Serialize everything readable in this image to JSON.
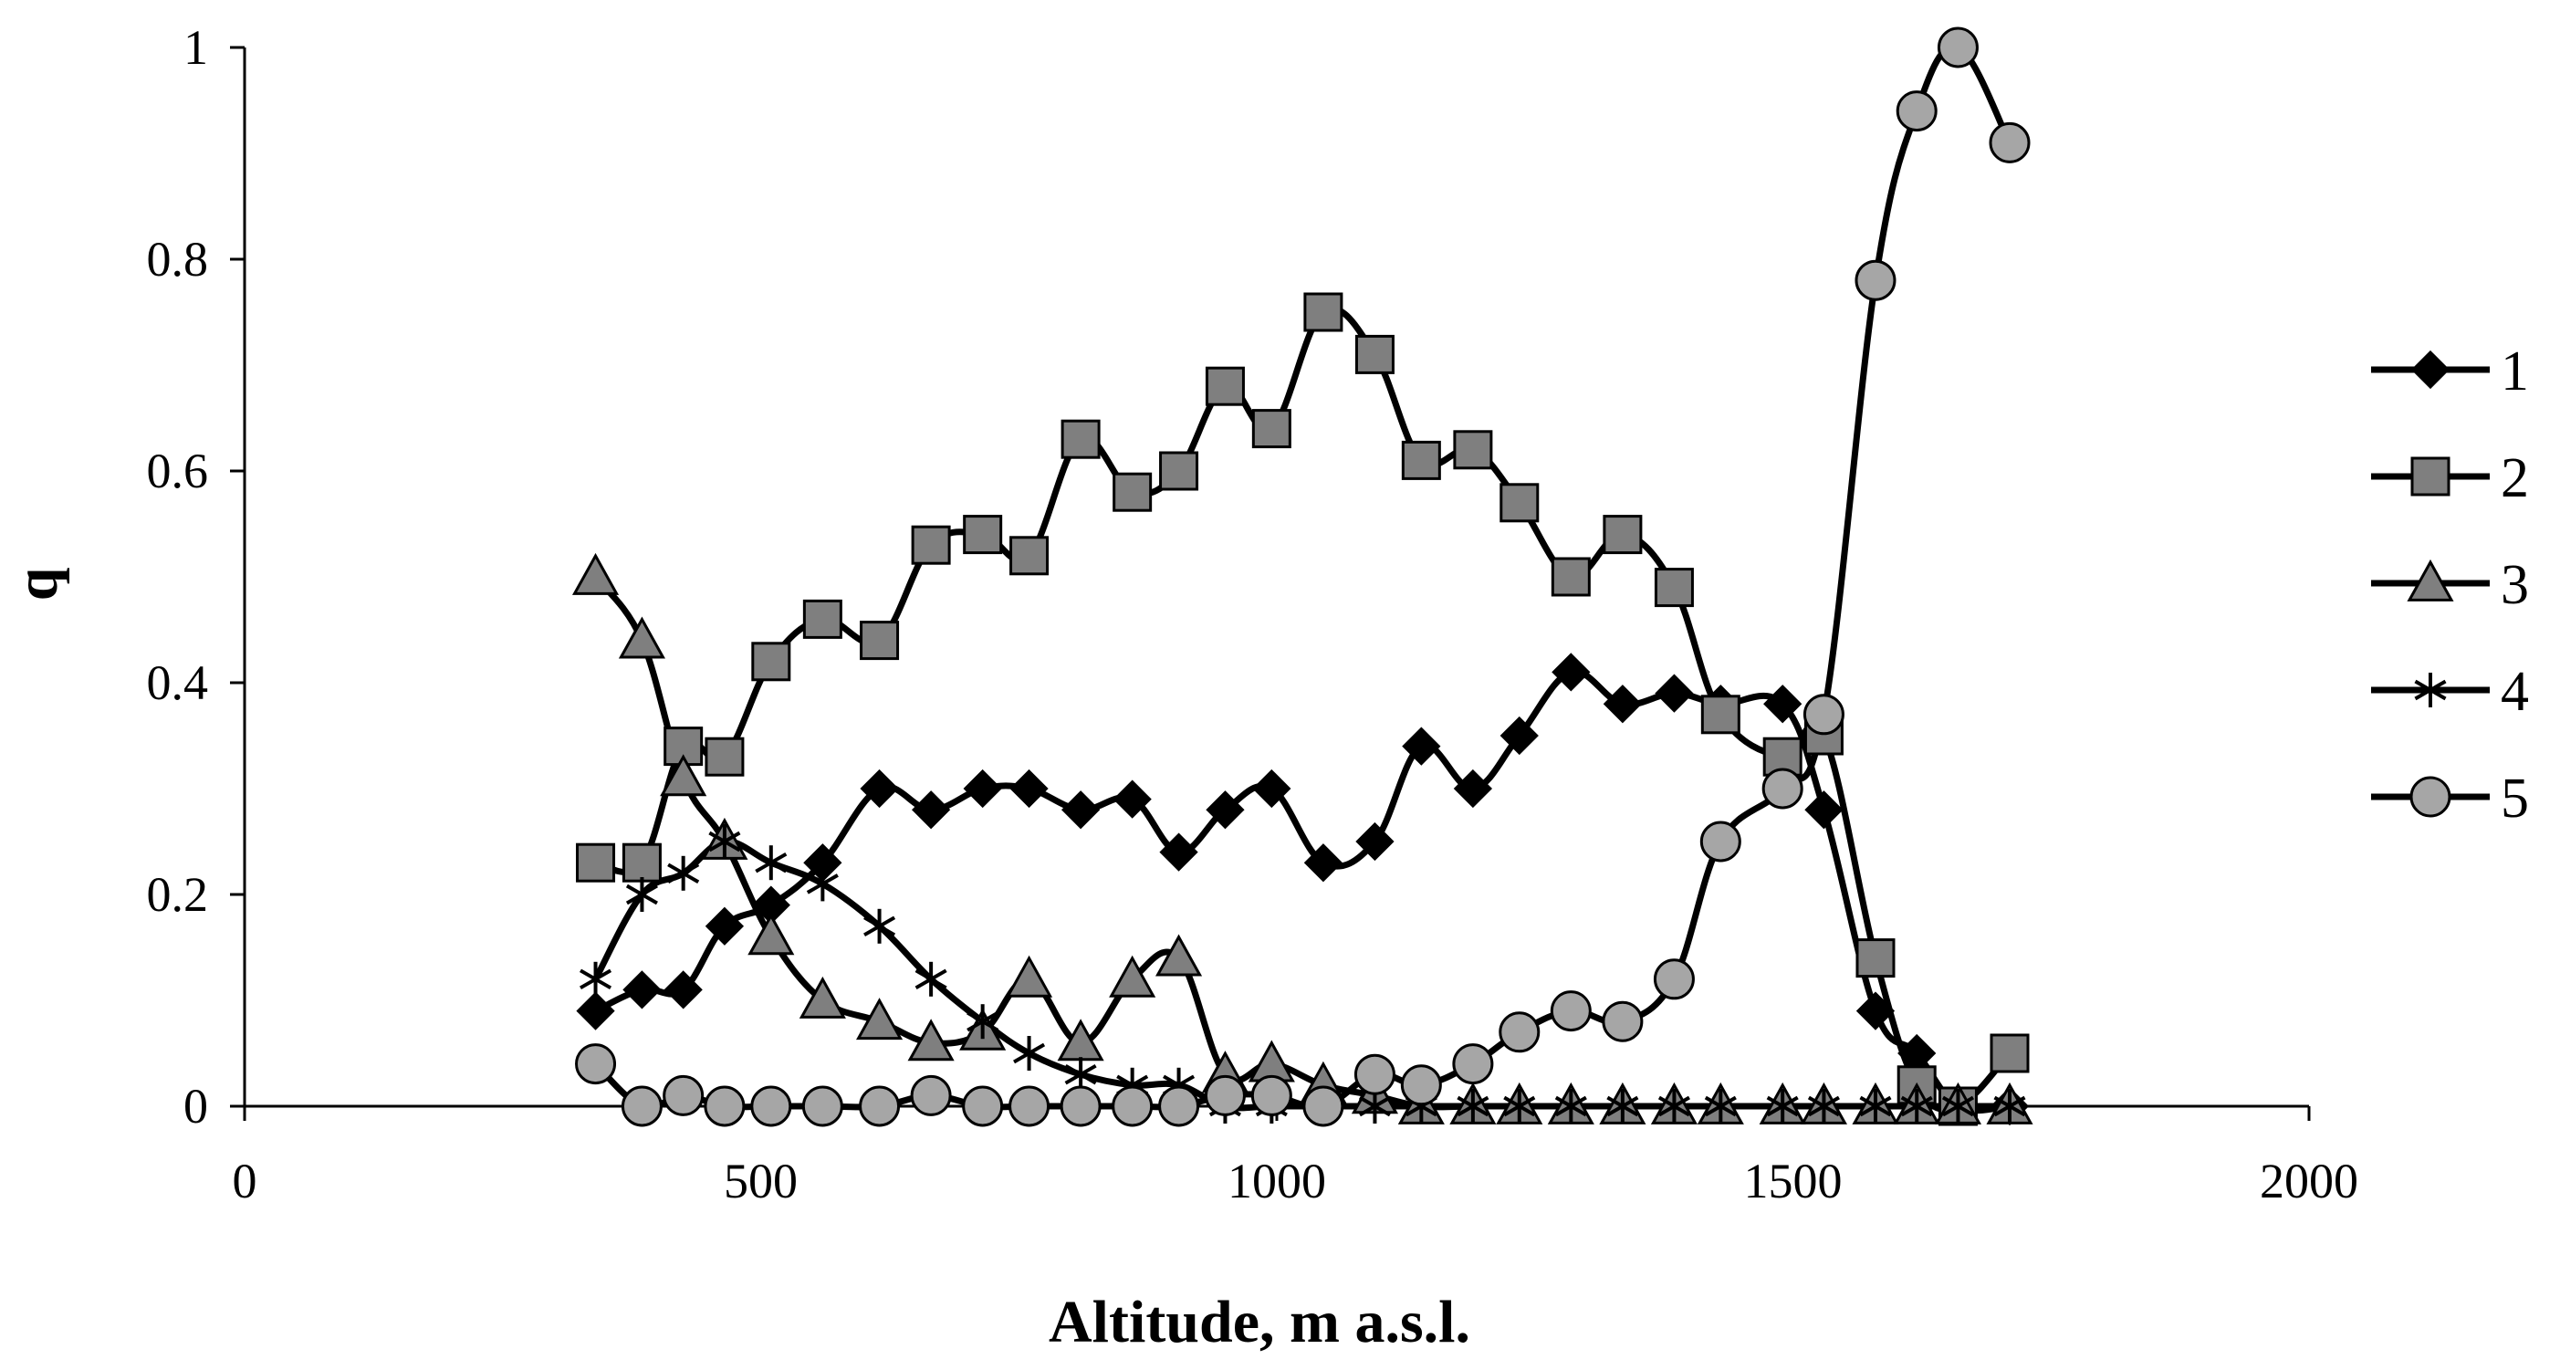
{
  "chart_data": {
    "type": "line",
    "title": "",
    "xlabel": "Altitude, m a.s.l.",
    "ylabel": "q",
    "xlim": [
      0,
      2000
    ],
    "ylim": [
      0,
      1
    ],
    "xticks": [
      0,
      500,
      1000,
      1500,
      2000
    ],
    "yticks": [
      0,
      0.2,
      0.4,
      0.6,
      0.8,
      1
    ],
    "xtick_labels": [
      "0",
      "500",
      "1000",
      "1500",
      "2000"
    ],
    "ytick_labels": [
      "0",
      "0.2",
      "0.4",
      "0.6",
      "0.8",
      "1"
    ],
    "grid": false,
    "legend_position": "right",
    "series": [
      {
        "name": "1",
        "marker": "diamond",
        "fill": "#000000",
        "x": [
          340,
          385,
          425,
          465,
          510,
          560,
          615,
          665,
          715,
          760,
          810,
          860,
          905,
          950,
          995,
          1045,
          1095,
          1140,
          1190,
          1235,
          1285,
          1335,
          1385,
          1430,
          1490,
          1530,
          1580,
          1620,
          1660,
          1710
        ],
        "y": [
          0.09,
          0.11,
          0.11,
          0.17,
          0.19,
          0.23,
          0.3,
          0.28,
          0.3,
          0.3,
          0.28,
          0.29,
          0.24,
          0.28,
          0.3,
          0.23,
          0.25,
          0.34,
          0.3,
          0.35,
          0.41,
          0.38,
          0.39,
          0.38,
          0.38,
          0.28,
          0.09,
          0.05,
          0.0,
          0.0
        ]
      },
      {
        "name": "2",
        "marker": "square",
        "fill": "#7f7f7f",
        "x": [
          340,
          385,
          425,
          465,
          510,
          560,
          615,
          665,
          715,
          760,
          810,
          860,
          905,
          950,
          995,
          1045,
          1095,
          1140,
          1190,
          1235,
          1285,
          1335,
          1385,
          1430,
          1490,
          1530,
          1580,
          1620,
          1660,
          1710
        ],
        "y": [
          0.23,
          0.23,
          0.34,
          0.33,
          0.42,
          0.46,
          0.44,
          0.53,
          0.54,
          0.52,
          0.63,
          0.58,
          0.6,
          0.68,
          0.64,
          0.75,
          0.71,
          0.61,
          0.62,
          0.57,
          0.5,
          0.54,
          0.49,
          0.37,
          0.33,
          0.35,
          0.14,
          0.02,
          0.0,
          0.05
        ]
      },
      {
        "name": "3",
        "marker": "triangle",
        "fill": "#7f7f7f",
        "x": [
          340,
          385,
          425,
          465,
          510,
          560,
          615,
          665,
          715,
          760,
          810,
          860,
          905,
          950,
          995,
          1045,
          1095,
          1140,
          1190,
          1235,
          1285,
          1335,
          1385,
          1430,
          1490,
          1530,
          1580,
          1620,
          1660,
          1710
        ],
        "y": [
          0.5,
          0.44,
          0.31,
          0.25,
          0.16,
          0.1,
          0.08,
          0.06,
          0.07,
          0.12,
          0.06,
          0.12,
          0.14,
          0.03,
          0.04,
          0.02,
          0.01,
          0.0,
          0.0,
          0.0,
          0.0,
          0.0,
          0.0,
          0.0,
          0.0,
          0.0,
          0.0,
          0.0,
          0.0,
          0.0
        ]
      },
      {
        "name": "4",
        "marker": "star",
        "fill": "#000000",
        "x": [
          340,
          385,
          425,
          465,
          510,
          560,
          615,
          665,
          715,
          760,
          810,
          860,
          905,
          950,
          995,
          1045,
          1095,
          1140,
          1190,
          1235,
          1285,
          1335,
          1385,
          1430,
          1490,
          1530,
          1580,
          1620,
          1660,
          1710
        ],
        "y": [
          0.12,
          0.2,
          0.22,
          0.25,
          0.23,
          0.21,
          0.17,
          0.12,
          0.08,
          0.05,
          0.03,
          0.02,
          0.02,
          0.0,
          0.0,
          0.0,
          0.0,
          0.0,
          0.0,
          0.0,
          0.0,
          0.0,
          0.0,
          0.0,
          0.0,
          0.0,
          0.0,
          0.0,
          0.0,
          0.0
        ]
      },
      {
        "name": "5",
        "marker": "circle",
        "fill": "#a6a6a6",
        "x": [
          340,
          385,
          425,
          465,
          510,
          560,
          615,
          665,
          715,
          760,
          810,
          860,
          905,
          950,
          995,
          1045,
          1095,
          1140,
          1190,
          1235,
          1285,
          1335,
          1385,
          1430,
          1490,
          1530,
          1580,
          1620,
          1660,
          1710
        ],
        "y": [
          0.04,
          0.0,
          0.01,
          0.0,
          0.0,
          0.0,
          0.0,
          0.01,
          0.0,
          0.0,
          0.0,
          0.0,
          0.0,
          0.01,
          0.01,
          0.0,
          0.03,
          0.02,
          0.04,
          0.07,
          0.09,
          0.08,
          0.12,
          0.25,
          0.3,
          0.37,
          0.78,
          0.94,
          1.0,
          0.91
        ]
      }
    ]
  }
}
